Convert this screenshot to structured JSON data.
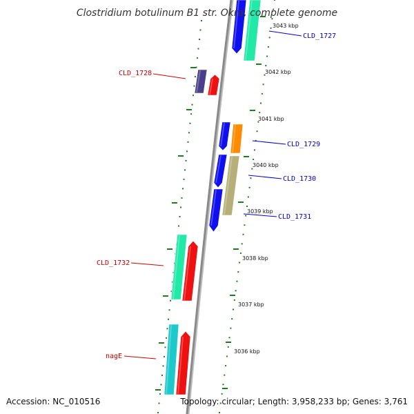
{
  "title": "Clostridium botulinum B1 str. Okra, complete genome",
  "footer": {
    "accession": "Accession: NC_010516",
    "summary": "Topology: circular; Length: 3,958,233 bp; Genes: 3,761"
  },
  "colors": {
    "backbone": "#8a8a8a",
    "tick": "#1e7a1e",
    "forward_label": "#0000cc",
    "reverse_label": "#cc0000"
  },
  "ruler": [
    {
      "label": "3043 kbp"
    },
    {
      "label": "3042 kbp"
    },
    {
      "label": "3041 kbp"
    },
    {
      "label": "3040 kbp"
    },
    {
      "label": "3039 kbp"
    },
    {
      "label": "3038 kbp"
    },
    {
      "label": "3037 kbp"
    },
    {
      "label": "3036 kbp"
    }
  ],
  "gene_labels": [
    {
      "text": "CLD_1727",
      "strand": "forward"
    },
    {
      "text": "CLD_1728",
      "strand": "reverse"
    },
    {
      "text": "CLD_1729",
      "strand": "forward"
    },
    {
      "text": "CLD_1730",
      "strand": "forward"
    },
    {
      "text": "CLD_1731",
      "strand": "forward"
    },
    {
      "text": "CLD_1732",
      "strand": "reverse"
    },
    {
      "text": "nagE",
      "strand": "reverse"
    }
  ],
  "features": [
    {
      "color": "#1010ee"
    },
    {
      "color": "#22e8a8"
    },
    {
      "color": "#4a3f8a"
    },
    {
      "color": "#ee1111"
    },
    {
      "color": "#1010ee"
    },
    {
      "color": "#ff8c00"
    },
    {
      "color": "#1010ee"
    },
    {
      "color": "#b5b07a"
    },
    {
      "color": "#1010ee"
    },
    {
      "color": "#22e8a8"
    },
    {
      "color": "#ee1111"
    },
    {
      "color": "#1ec9cc"
    },
    {
      "color": "#ee1111"
    }
  ]
}
